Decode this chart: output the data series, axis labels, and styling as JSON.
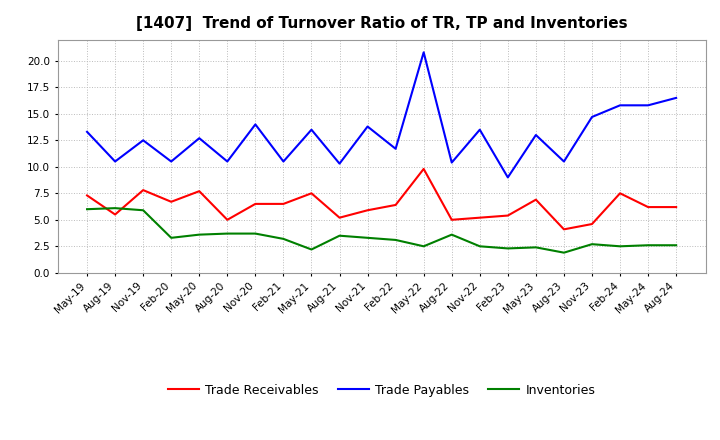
{
  "title": "[1407]  Trend of Turnover Ratio of TR, TP and Inventories",
  "x_labels": [
    "May-19",
    "Aug-19",
    "Nov-19",
    "Feb-20",
    "May-20",
    "Aug-20",
    "Nov-20",
    "Feb-21",
    "May-21",
    "Aug-21",
    "Nov-21",
    "Feb-22",
    "May-22",
    "Aug-22",
    "Nov-22",
    "Feb-23",
    "May-23",
    "Aug-23",
    "Nov-23",
    "Feb-24",
    "May-24",
    "Aug-24"
  ],
  "trade_receivables": [
    7.3,
    5.5,
    7.8,
    6.7,
    7.7,
    5.0,
    6.5,
    6.5,
    7.5,
    5.2,
    5.9,
    6.4,
    9.8,
    5.0,
    5.2,
    5.4,
    6.9,
    4.1,
    4.6,
    7.5,
    6.2,
    6.2
  ],
  "trade_payables": [
    13.3,
    10.5,
    12.5,
    10.5,
    12.7,
    10.5,
    14.0,
    10.5,
    13.5,
    10.3,
    13.8,
    11.7,
    20.8,
    10.4,
    13.5,
    9.0,
    13.0,
    10.5,
    14.7,
    15.8,
    15.8,
    16.5
  ],
  "inventories": [
    6.0,
    6.1,
    5.9,
    3.3,
    3.6,
    3.7,
    3.7,
    3.2,
    2.2,
    3.5,
    3.3,
    3.1,
    2.5,
    3.6,
    2.5,
    2.3,
    2.4,
    1.9,
    2.7,
    2.5,
    2.6,
    2.6
  ],
  "ylim": [
    0.0,
    22.0
  ],
  "yticks": [
    0.0,
    2.5,
    5.0,
    7.5,
    10.0,
    12.5,
    15.0,
    17.5,
    20.0
  ],
  "colors": {
    "trade_receivables": "#ff0000",
    "trade_payables": "#0000ff",
    "inventories": "#008000"
  },
  "legend": {
    "trade_receivables": "Trade Receivables",
    "trade_payables": "Trade Payables",
    "inventories": "Inventories"
  },
  "background_color": "#ffffff",
  "plot_background": "#ffffff",
  "grid_color": "#bbbbbb",
  "linewidth": 1.5,
  "title_fontsize": 11,
  "tick_fontsize": 7.5,
  "legend_fontsize": 9
}
